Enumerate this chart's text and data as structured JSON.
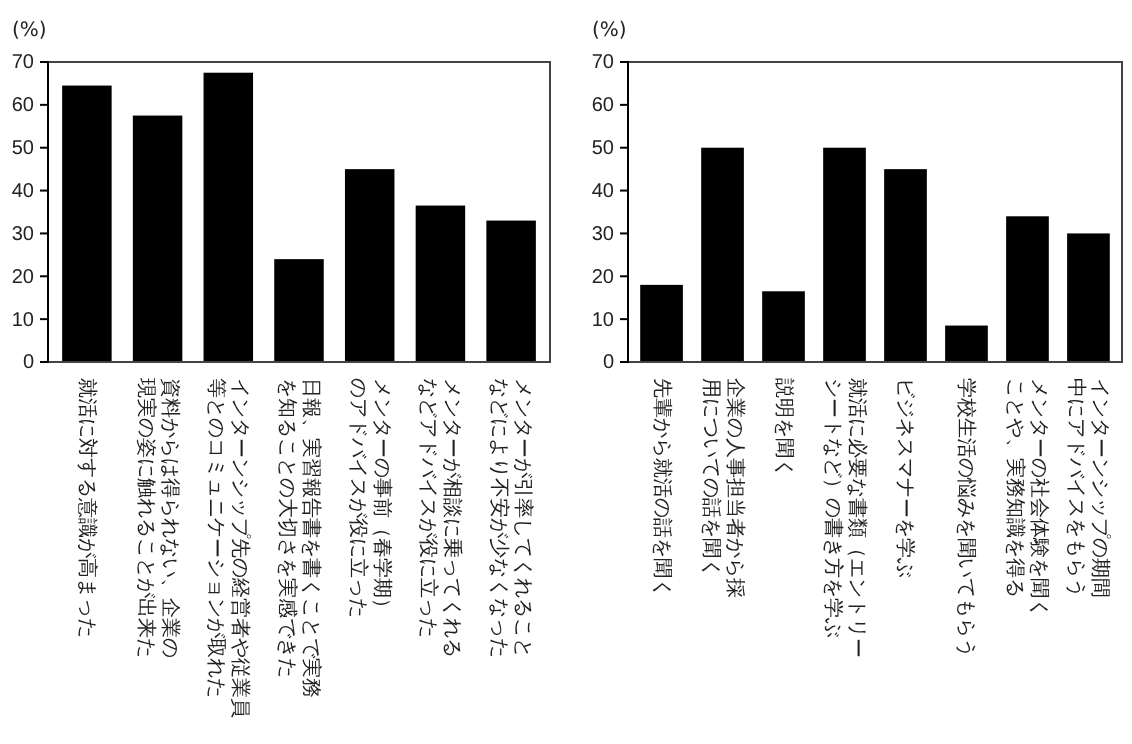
{
  "chart_data": [
    {
      "type": "bar",
      "ylabel": "(%)",
      "categories": [
        "就活に対する意識が高まった",
        "資料からは得られない、企業の現実の姿に触れることが出来た",
        "インターンシップ先の経営者や従業員等とのコミュニケーションが取れた",
        "日報、実習報告書を書くことで実務を知ることの大切さを実感できた",
        "メンターの事前（春学期）のアドバイスが役に立った",
        "メンターが相談に乗ってくれるなどアドバイスが役に立った",
        "メンターが引率してくれることなどにより不安が少なくなった"
      ],
      "values": [
        64.5,
        57.5,
        67.5,
        24,
        45,
        36.5,
        33
      ],
      "color": "#000000",
      "ylim": [
        0,
        70
      ],
      "yticks": [
        0,
        10,
        20,
        30,
        40,
        50,
        60,
        70
      ]
    },
    {
      "type": "bar",
      "ylabel": "(%)",
      "categories": [
        "先輩から就活の話を聞く",
        "企業の人事担当者から採用についての話を聞く",
        "説明を聞く",
        "就活に必要な書類（エントリーシートなど）の書き方を学ぶ",
        "ビジネスマナーを学ぶ",
        "学校生活の悩みを聞いてもらう",
        "メンターの社会体験を聞くことや、実務知識を得る",
        "インターンシップの期間中にアドバイスをもらう"
      ],
      "values": [
        18,
        50,
        16.5,
        50,
        45,
        8.5,
        34,
        30
      ],
      "color": "#000000",
      "ylim": [
        0,
        70
      ],
      "yticks": [
        0,
        10,
        20,
        30,
        40,
        50,
        60,
        70
      ]
    }
  ]
}
